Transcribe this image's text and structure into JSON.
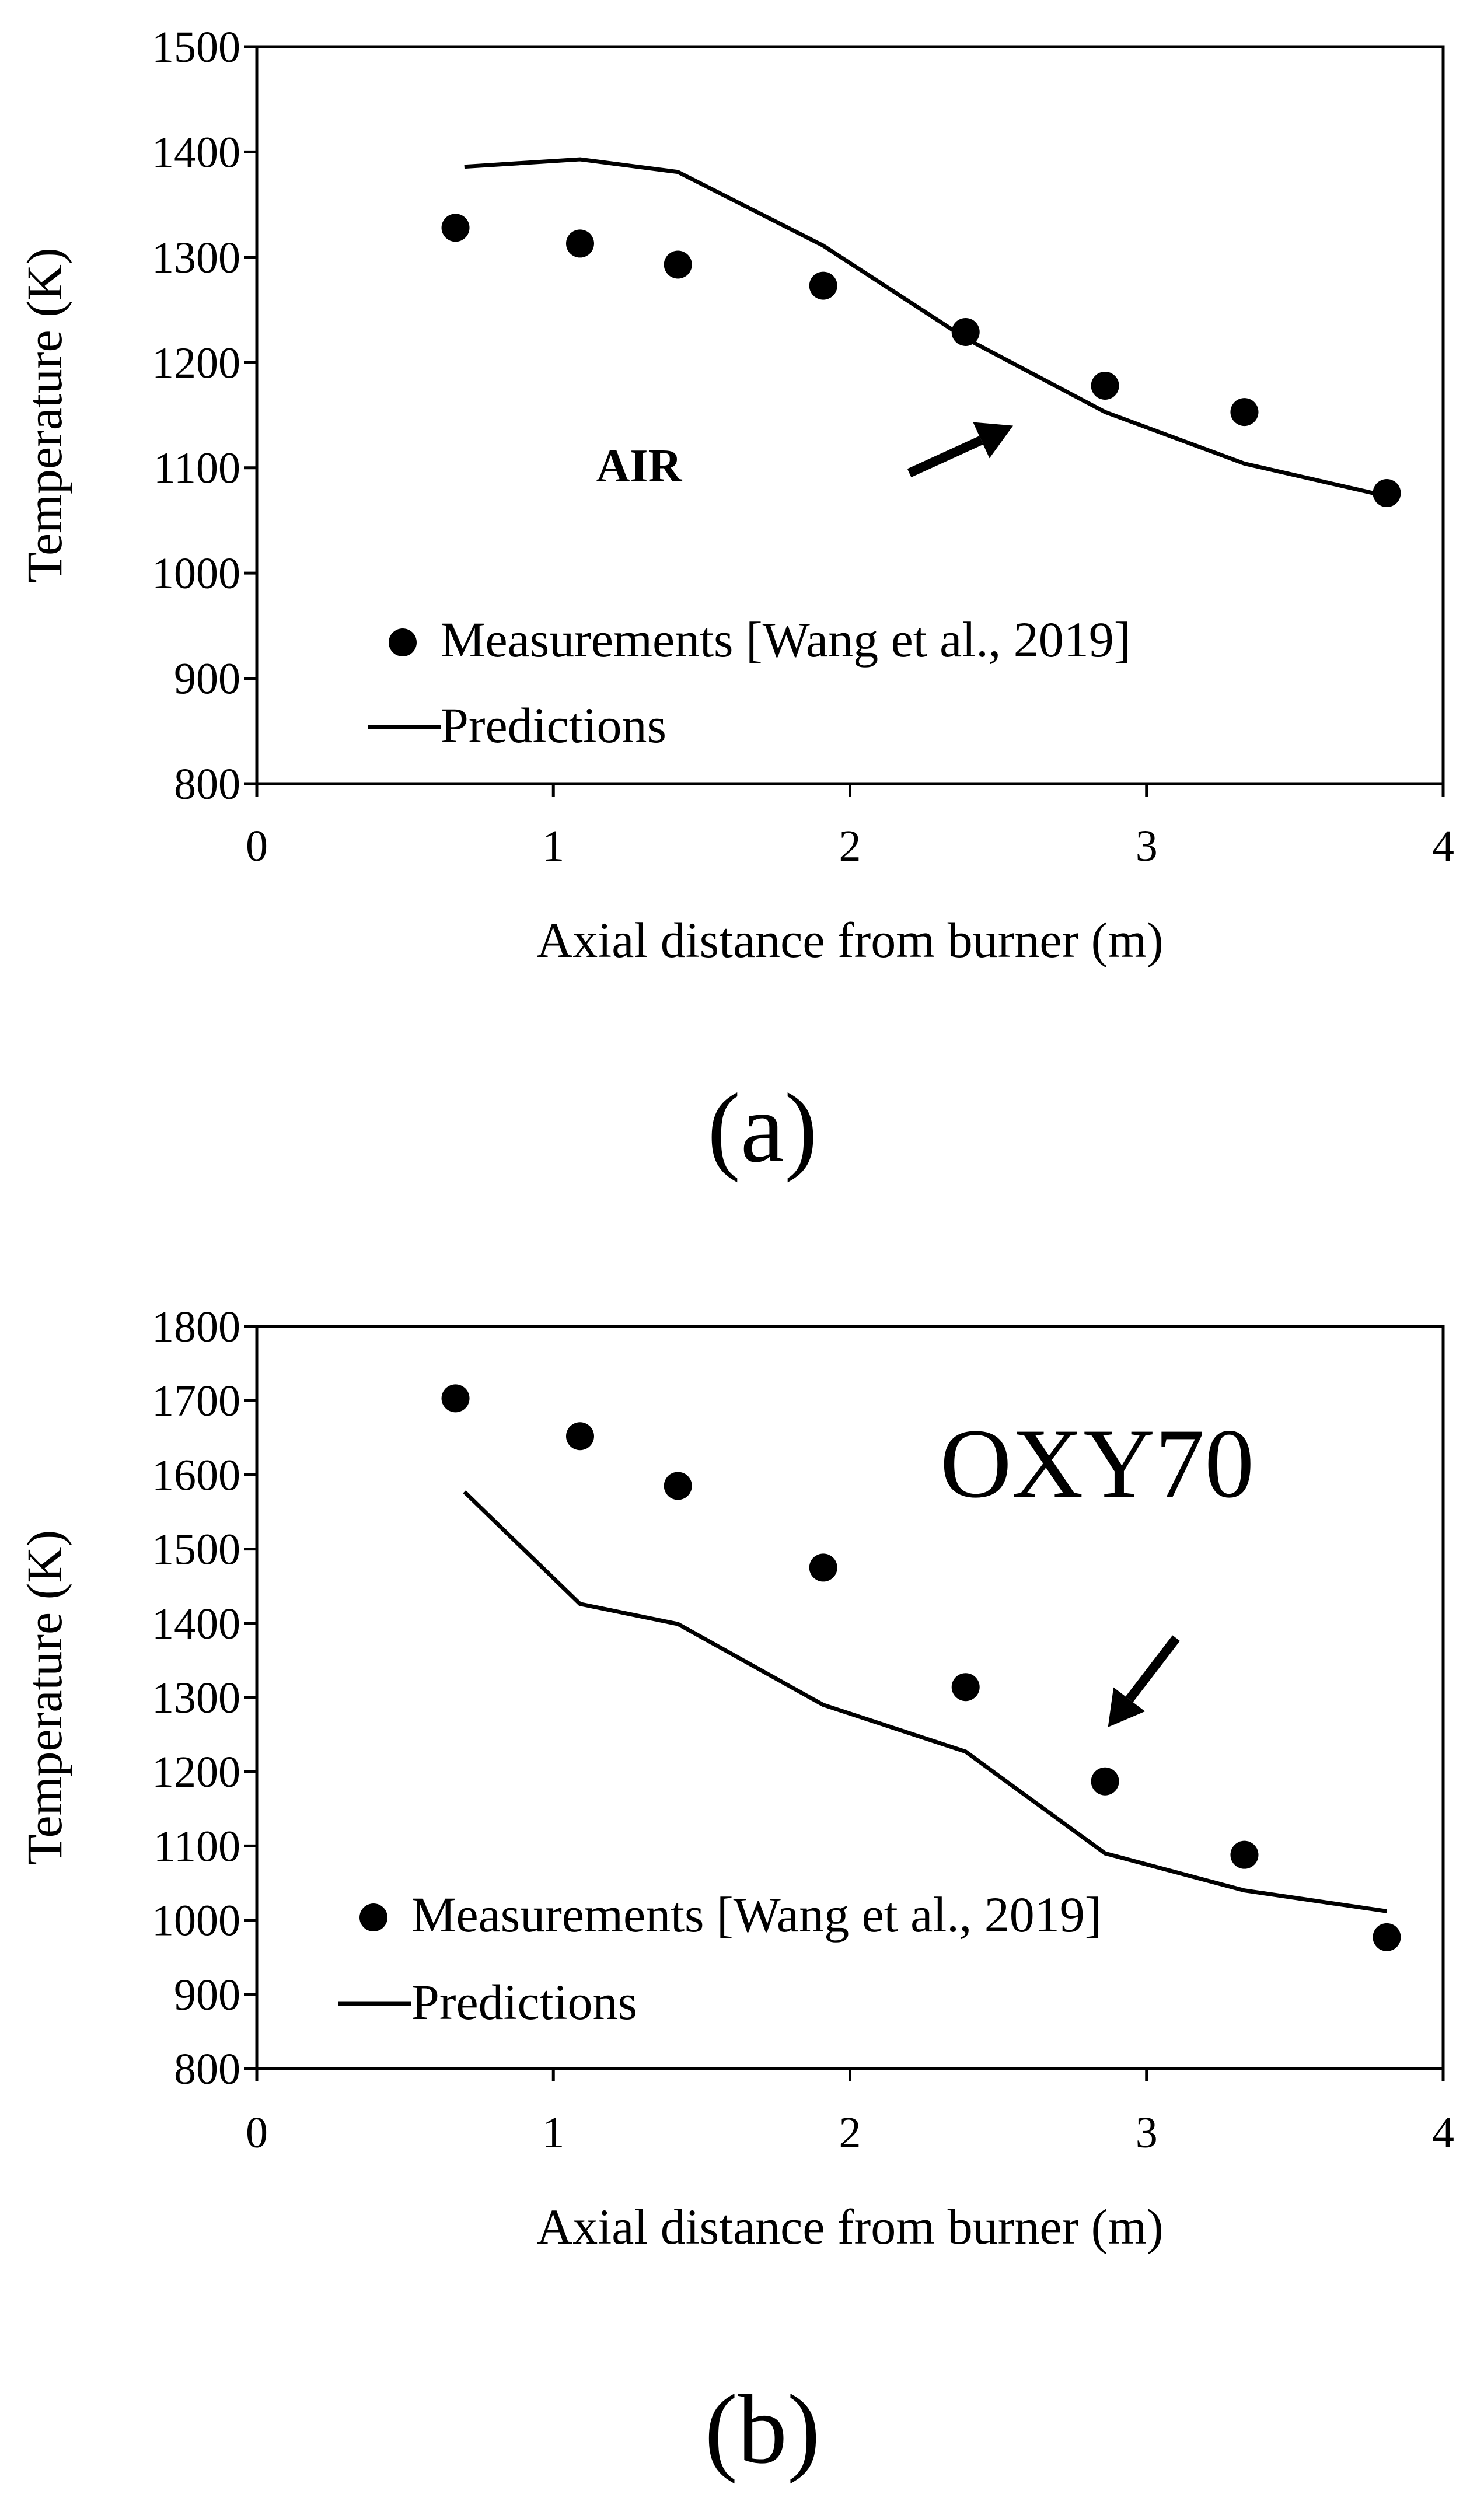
{
  "chart_data": [
    {
      "type": "scatter",
      "panel_label": "(a)",
      "annotation": "AIR",
      "annotation_style": "bold",
      "xlabel": "Axial distance from burner (m)",
      "ylabel": "Temperature (K)",
      "xlim": [
        0,
        4
      ],
      "ylim": [
        800,
        1500
      ],
      "xticks": [
        "0",
        "1",
        "2",
        "3",
        "4"
      ],
      "yticks": [
        "800",
        "900",
        "1000",
        "1100",
        "1200",
        "1300",
        "1400",
        "1500"
      ],
      "grid": false,
      "legend_position": "bottom-left",
      "series": [
        {
          "name": "Measurements [Wang et al., 2019]",
          "kind": "points",
          "x": [
            0.67,
            1.09,
            1.42,
            1.91,
            2.39,
            2.86,
            3.33,
            3.81
          ],
          "y": [
            1328,
            1313,
            1293,
            1273,
            1229,
            1178,
            1153,
            1076
          ]
        },
        {
          "name": "Predictions",
          "kind": "line",
          "x": [
            0.7,
            1.09,
            1.42,
            1.91,
            2.39,
            2.86,
            3.33,
            3.81
          ],
          "y": [
            1386,
            1393,
            1381,
            1311,
            1223,
            1153,
            1104,
            1073
          ]
        }
      ],
      "arrow": {
        "from": [
          2.2,
          1095
        ],
        "to": [
          2.55,
          1140
        ]
      }
    },
    {
      "type": "scatter",
      "panel_label": "(b)",
      "annotation": "OXY70",
      "annotation_style": "large",
      "xlabel": "Axial distance from burner (m)",
      "ylabel": "Temperature (K)",
      "xlim": [
        0,
        4
      ],
      "ylim": [
        800,
        1800
      ],
      "xticks": [
        "0",
        "1",
        "2",
        "3",
        "4"
      ],
      "yticks": [
        "800",
        "900",
        "1000",
        "1100",
        "1200",
        "1300",
        "1400",
        "1500",
        "1600",
        "1700",
        "1800"
      ],
      "grid": false,
      "legend_position": "bottom-left",
      "series": [
        {
          "name": "Measurements [Wang et al., 2019]",
          "kind": "points",
          "x": [
            0.67,
            1.09,
            1.42,
            1.91,
            2.39,
            2.86,
            3.33,
            3.81
          ],
          "y": [
            1703,
            1652,
            1585,
            1475,
            1314,
            1187,
            1088,
            977
          ]
        },
        {
          "name": "Predictions",
          "kind": "line",
          "x": [
            0.7,
            1.09,
            1.42,
            1.91,
            2.39,
            2.86,
            3.33,
            3.81
          ],
          "y": [
            1577,
            1426,
            1399,
            1290,
            1227,
            1090,
            1040,
            1012
          ]
        }
      ],
      "arrow": {
        "from": [
          3.1,
          1380
        ],
        "to": [
          2.87,
          1260
        ]
      }
    }
  ]
}
